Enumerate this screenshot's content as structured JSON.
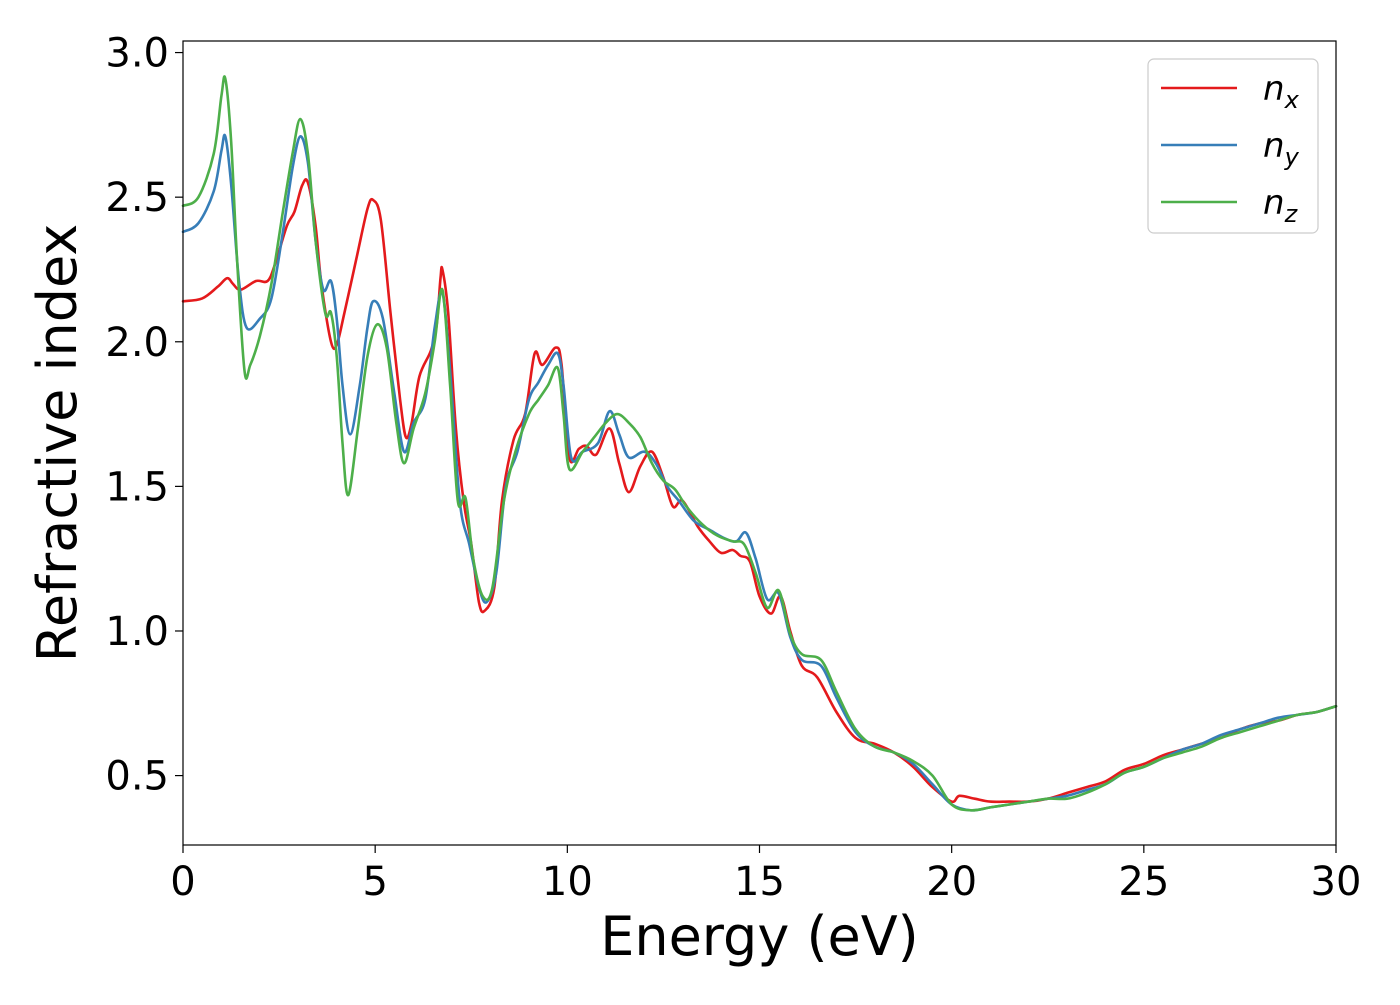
{
  "chart_data": {
    "type": "line",
    "title": "",
    "xlabel": "Energy (eV)",
    "ylabel": "Refractive index",
    "xlim": [
      0,
      30
    ],
    "ylim": [
      0.26,
      3.04
    ],
    "xticks": [
      0,
      5,
      10,
      15,
      20,
      25,
      30
    ],
    "xtick_labels": [
      "0",
      "5",
      "10",
      "15",
      "20",
      "25",
      "30"
    ],
    "yticks": [
      0.5,
      1.0,
      1.5,
      2.0,
      2.5,
      3.0
    ],
    "ytick_labels": [
      "0.5",
      "1.0",
      "1.5",
      "2.0",
      "2.5",
      "3.0"
    ],
    "grid": false,
    "legend_position": "top-right",
    "series": [
      {
        "name": "n_x",
        "legend_base": "n",
        "legend_sub": "x",
        "color": "#e41a1c",
        "points": [
          [
            0,
            2.14
          ],
          [
            0.5,
            2.15
          ],
          [
            0.9,
            2.19
          ],
          [
            1.15,
            2.22
          ],
          [
            1.3,
            2.2
          ],
          [
            1.5,
            2.18
          ],
          [
            1.9,
            2.21
          ],
          [
            2.2,
            2.21
          ],
          [
            2.4,
            2.27
          ],
          [
            2.7,
            2.4
          ],
          [
            2.9,
            2.45
          ],
          [
            3.1,
            2.54
          ],
          [
            3.25,
            2.55
          ],
          [
            3.45,
            2.4
          ],
          [
            3.6,
            2.2
          ],
          [
            3.85,
            2.0
          ],
          [
            4.0,
            1.99
          ],
          [
            4.2,
            2.1
          ],
          [
            4.5,
            2.28
          ],
          [
            4.8,
            2.46
          ],
          [
            4.95,
            2.49
          ],
          [
            5.15,
            2.42
          ],
          [
            5.4,
            2.1
          ],
          [
            5.65,
            1.8
          ],
          [
            5.8,
            1.67
          ],
          [
            5.95,
            1.72
          ],
          [
            6.15,
            1.88
          ],
          [
            6.45,
            1.97
          ],
          [
            6.6,
            2.06
          ],
          [
            6.7,
            2.22
          ],
          [
            6.75,
            2.25
          ],
          [
            6.9,
            2.1
          ],
          [
            7.1,
            1.7
          ],
          [
            7.3,
            1.45
          ],
          [
            7.5,
            1.3
          ],
          [
            7.7,
            1.1
          ],
          [
            7.85,
            1.07
          ],
          [
            8.1,
            1.15
          ],
          [
            8.3,
            1.45
          ],
          [
            8.6,
            1.66
          ],
          [
            8.9,
            1.75
          ],
          [
            9.15,
            1.96
          ],
          [
            9.35,
            1.92
          ],
          [
            9.7,
            1.98
          ],
          [
            9.85,
            1.92
          ],
          [
            10.05,
            1.6
          ],
          [
            10.3,
            1.63
          ],
          [
            10.5,
            1.64
          ],
          [
            10.75,
            1.61
          ],
          [
            11.1,
            1.7
          ],
          [
            11.35,
            1.58
          ],
          [
            11.6,
            1.48
          ],
          [
            11.9,
            1.57
          ],
          [
            12.2,
            1.62
          ],
          [
            12.5,
            1.53
          ],
          [
            12.75,
            1.43
          ],
          [
            13.0,
            1.45
          ],
          [
            13.4,
            1.36
          ],
          [
            13.7,
            1.31
          ],
          [
            14.0,
            1.27
          ],
          [
            14.3,
            1.28
          ],
          [
            14.5,
            1.26
          ],
          [
            14.75,
            1.24
          ],
          [
            15.0,
            1.12
          ],
          [
            15.3,
            1.06
          ],
          [
            15.55,
            1.12
          ],
          [
            15.8,
            1.0
          ],
          [
            16.1,
            0.88
          ],
          [
            16.5,
            0.84
          ],
          [
            17.0,
            0.72
          ],
          [
            17.5,
            0.63
          ],
          [
            18.0,
            0.61
          ],
          [
            18.5,
            0.58
          ],
          [
            19.0,
            0.53
          ],
          [
            19.5,
            0.46
          ],
          [
            20.0,
            0.41
          ],
          [
            20.2,
            0.43
          ],
          [
            20.6,
            0.42
          ],
          [
            21.0,
            0.41
          ],
          [
            21.5,
            0.41
          ],
          [
            22.0,
            0.41
          ],
          [
            22.5,
            0.42
          ],
          [
            23.0,
            0.44
          ],
          [
            23.5,
            0.46
          ],
          [
            24.0,
            0.48
          ],
          [
            24.5,
            0.52
          ],
          [
            25.0,
            0.54
          ],
          [
            25.5,
            0.57
          ],
          [
            26.0,
            0.59
          ],
          [
            26.5,
            0.61
          ],
          [
            27.0,
            0.63
          ],
          [
            27.5,
            0.66
          ],
          [
            28.0,
            0.68
          ],
          [
            28.5,
            0.69
          ],
          [
            29.0,
            0.71
          ],
          [
            29.5,
            0.72
          ],
          [
            30.0,
            0.74
          ]
        ]
      },
      {
        "name": "n_y",
        "legend_base": "n",
        "legend_sub": "y",
        "color": "#377eb8",
        "points": [
          [
            0,
            2.38
          ],
          [
            0.4,
            2.41
          ],
          [
            0.8,
            2.52
          ],
          [
            1.0,
            2.66
          ],
          [
            1.1,
            2.71
          ],
          [
            1.25,
            2.55
          ],
          [
            1.45,
            2.22
          ],
          [
            1.65,
            2.05
          ],
          [
            2.0,
            2.08
          ],
          [
            2.3,
            2.15
          ],
          [
            2.6,
            2.38
          ],
          [
            2.85,
            2.6
          ],
          [
            3.05,
            2.71
          ],
          [
            3.25,
            2.62
          ],
          [
            3.45,
            2.35
          ],
          [
            3.65,
            2.18
          ],
          [
            3.85,
            2.21
          ],
          [
            4.0,
            2.08
          ],
          [
            4.15,
            1.85
          ],
          [
            4.35,
            1.68
          ],
          [
            4.6,
            1.85
          ],
          [
            4.8,
            2.05
          ],
          [
            4.95,
            2.14
          ],
          [
            5.2,
            2.08
          ],
          [
            5.5,
            1.82
          ],
          [
            5.75,
            1.62
          ],
          [
            6.0,
            1.72
          ],
          [
            6.3,
            1.8
          ],
          [
            6.55,
            2.05
          ],
          [
            6.75,
            2.17
          ],
          [
            6.95,
            1.9
          ],
          [
            7.2,
            1.45
          ],
          [
            7.45,
            1.3
          ],
          [
            7.7,
            1.15
          ],
          [
            7.9,
            1.1
          ],
          [
            8.15,
            1.2
          ],
          [
            8.4,
            1.5
          ],
          [
            8.7,
            1.62
          ],
          [
            9.0,
            1.8
          ],
          [
            9.25,
            1.86
          ],
          [
            9.5,
            1.92
          ],
          [
            9.75,
            1.96
          ],
          [
            9.9,
            1.85
          ],
          [
            10.1,
            1.6
          ],
          [
            10.4,
            1.62
          ],
          [
            10.8,
            1.65
          ],
          [
            11.1,
            1.76
          ],
          [
            11.35,
            1.68
          ],
          [
            11.6,
            1.6
          ],
          [
            12.0,
            1.62
          ],
          [
            12.3,
            1.58
          ],
          [
            12.6,
            1.5
          ],
          [
            12.9,
            1.45
          ],
          [
            13.3,
            1.38
          ],
          [
            13.7,
            1.35
          ],
          [
            14.1,
            1.32
          ],
          [
            14.4,
            1.31
          ],
          [
            14.65,
            1.34
          ],
          [
            14.9,
            1.25
          ],
          [
            15.2,
            1.11
          ],
          [
            15.5,
            1.13
          ],
          [
            15.8,
            0.98
          ],
          [
            16.1,
            0.9
          ],
          [
            16.6,
            0.88
          ],
          [
            17.0,
            0.77
          ],
          [
            17.5,
            0.65
          ],
          [
            18.0,
            0.6
          ],
          [
            18.5,
            0.58
          ],
          [
            19.0,
            0.54
          ],
          [
            19.5,
            0.47
          ],
          [
            20.0,
            0.4
          ],
          [
            20.5,
            0.38
          ],
          [
            21.0,
            0.39
          ],
          [
            21.5,
            0.4
          ],
          [
            22.0,
            0.41
          ],
          [
            22.5,
            0.42
          ],
          [
            23.0,
            0.43
          ],
          [
            23.5,
            0.45
          ],
          [
            24.0,
            0.47
          ],
          [
            24.5,
            0.51
          ],
          [
            25.0,
            0.53
          ],
          [
            25.5,
            0.56
          ],
          [
            26.0,
            0.59
          ],
          [
            26.5,
            0.61
          ],
          [
            27.0,
            0.64
          ],
          [
            27.5,
            0.66
          ],
          [
            28.0,
            0.68
          ],
          [
            28.5,
            0.7
          ],
          [
            29.0,
            0.71
          ],
          [
            29.5,
            0.72
          ],
          [
            30.0,
            0.74
          ]
        ]
      },
      {
        "name": "n_z",
        "legend_base": "n",
        "legend_sub": "z",
        "color": "#4daf4a",
        "points": [
          [
            0,
            2.47
          ],
          [
            0.4,
            2.5
          ],
          [
            0.8,
            2.65
          ],
          [
            1.0,
            2.85
          ],
          [
            1.1,
            2.91
          ],
          [
            1.25,
            2.7
          ],
          [
            1.4,
            2.3
          ],
          [
            1.6,
            1.9
          ],
          [
            1.75,
            1.92
          ],
          [
            2.0,
            2.02
          ],
          [
            2.3,
            2.2
          ],
          [
            2.6,
            2.45
          ],
          [
            2.85,
            2.65
          ],
          [
            3.05,
            2.77
          ],
          [
            3.25,
            2.65
          ],
          [
            3.45,
            2.35
          ],
          [
            3.7,
            2.1
          ],
          [
            3.85,
            2.1
          ],
          [
            4.0,
            1.95
          ],
          [
            4.15,
            1.65
          ],
          [
            4.3,
            1.47
          ],
          [
            4.55,
            1.7
          ],
          [
            4.8,
            1.95
          ],
          [
            5.05,
            2.06
          ],
          [
            5.3,
            1.98
          ],
          [
            5.55,
            1.72
          ],
          [
            5.75,
            1.58
          ],
          [
            6.0,
            1.7
          ],
          [
            6.3,
            1.82
          ],
          [
            6.55,
            2.0
          ],
          [
            6.75,
            2.18
          ],
          [
            6.95,
            1.85
          ],
          [
            7.15,
            1.45
          ],
          [
            7.35,
            1.46
          ],
          [
            7.55,
            1.25
          ],
          [
            7.8,
            1.12
          ],
          [
            8.05,
            1.15
          ],
          [
            8.35,
            1.45
          ],
          [
            8.65,
            1.62
          ],
          [
            9.0,
            1.75
          ],
          [
            9.25,
            1.8
          ],
          [
            9.5,
            1.85
          ],
          [
            9.75,
            1.91
          ],
          [
            9.9,
            1.75
          ],
          [
            10.05,
            1.56
          ],
          [
            10.4,
            1.62
          ],
          [
            10.7,
            1.67
          ],
          [
            11.0,
            1.72
          ],
          [
            11.3,
            1.75
          ],
          [
            11.6,
            1.72
          ],
          [
            11.9,
            1.67
          ],
          [
            12.2,
            1.58
          ],
          [
            12.5,
            1.52
          ],
          [
            12.8,
            1.49
          ],
          [
            13.1,
            1.43
          ],
          [
            13.5,
            1.37
          ],
          [
            13.9,
            1.33
          ],
          [
            14.3,
            1.31
          ],
          [
            14.6,
            1.3
          ],
          [
            14.9,
            1.2
          ],
          [
            15.2,
            1.08
          ],
          [
            15.5,
            1.14
          ],
          [
            15.8,
            0.99
          ],
          [
            16.1,
            0.92
          ],
          [
            16.6,
            0.9
          ],
          [
            17.0,
            0.79
          ],
          [
            17.5,
            0.66
          ],
          [
            18.0,
            0.6
          ],
          [
            18.5,
            0.58
          ],
          [
            19.0,
            0.55
          ],
          [
            19.5,
            0.5
          ],
          [
            20.0,
            0.4
          ],
          [
            20.5,
            0.38
          ],
          [
            21.0,
            0.39
          ],
          [
            21.5,
            0.4
          ],
          [
            22.0,
            0.41
          ],
          [
            22.5,
            0.42
          ],
          [
            23.0,
            0.42
          ],
          [
            23.5,
            0.44
          ],
          [
            24.0,
            0.47
          ],
          [
            24.5,
            0.51
          ],
          [
            25.0,
            0.53
          ],
          [
            25.5,
            0.56
          ],
          [
            26.0,
            0.58
          ],
          [
            26.5,
            0.6
          ],
          [
            27.0,
            0.63
          ],
          [
            27.5,
            0.65
          ],
          [
            28.0,
            0.67
          ],
          [
            28.5,
            0.69
          ],
          [
            29.0,
            0.71
          ],
          [
            29.5,
            0.72
          ],
          [
            30.0,
            0.74
          ]
        ]
      }
    ]
  }
}
